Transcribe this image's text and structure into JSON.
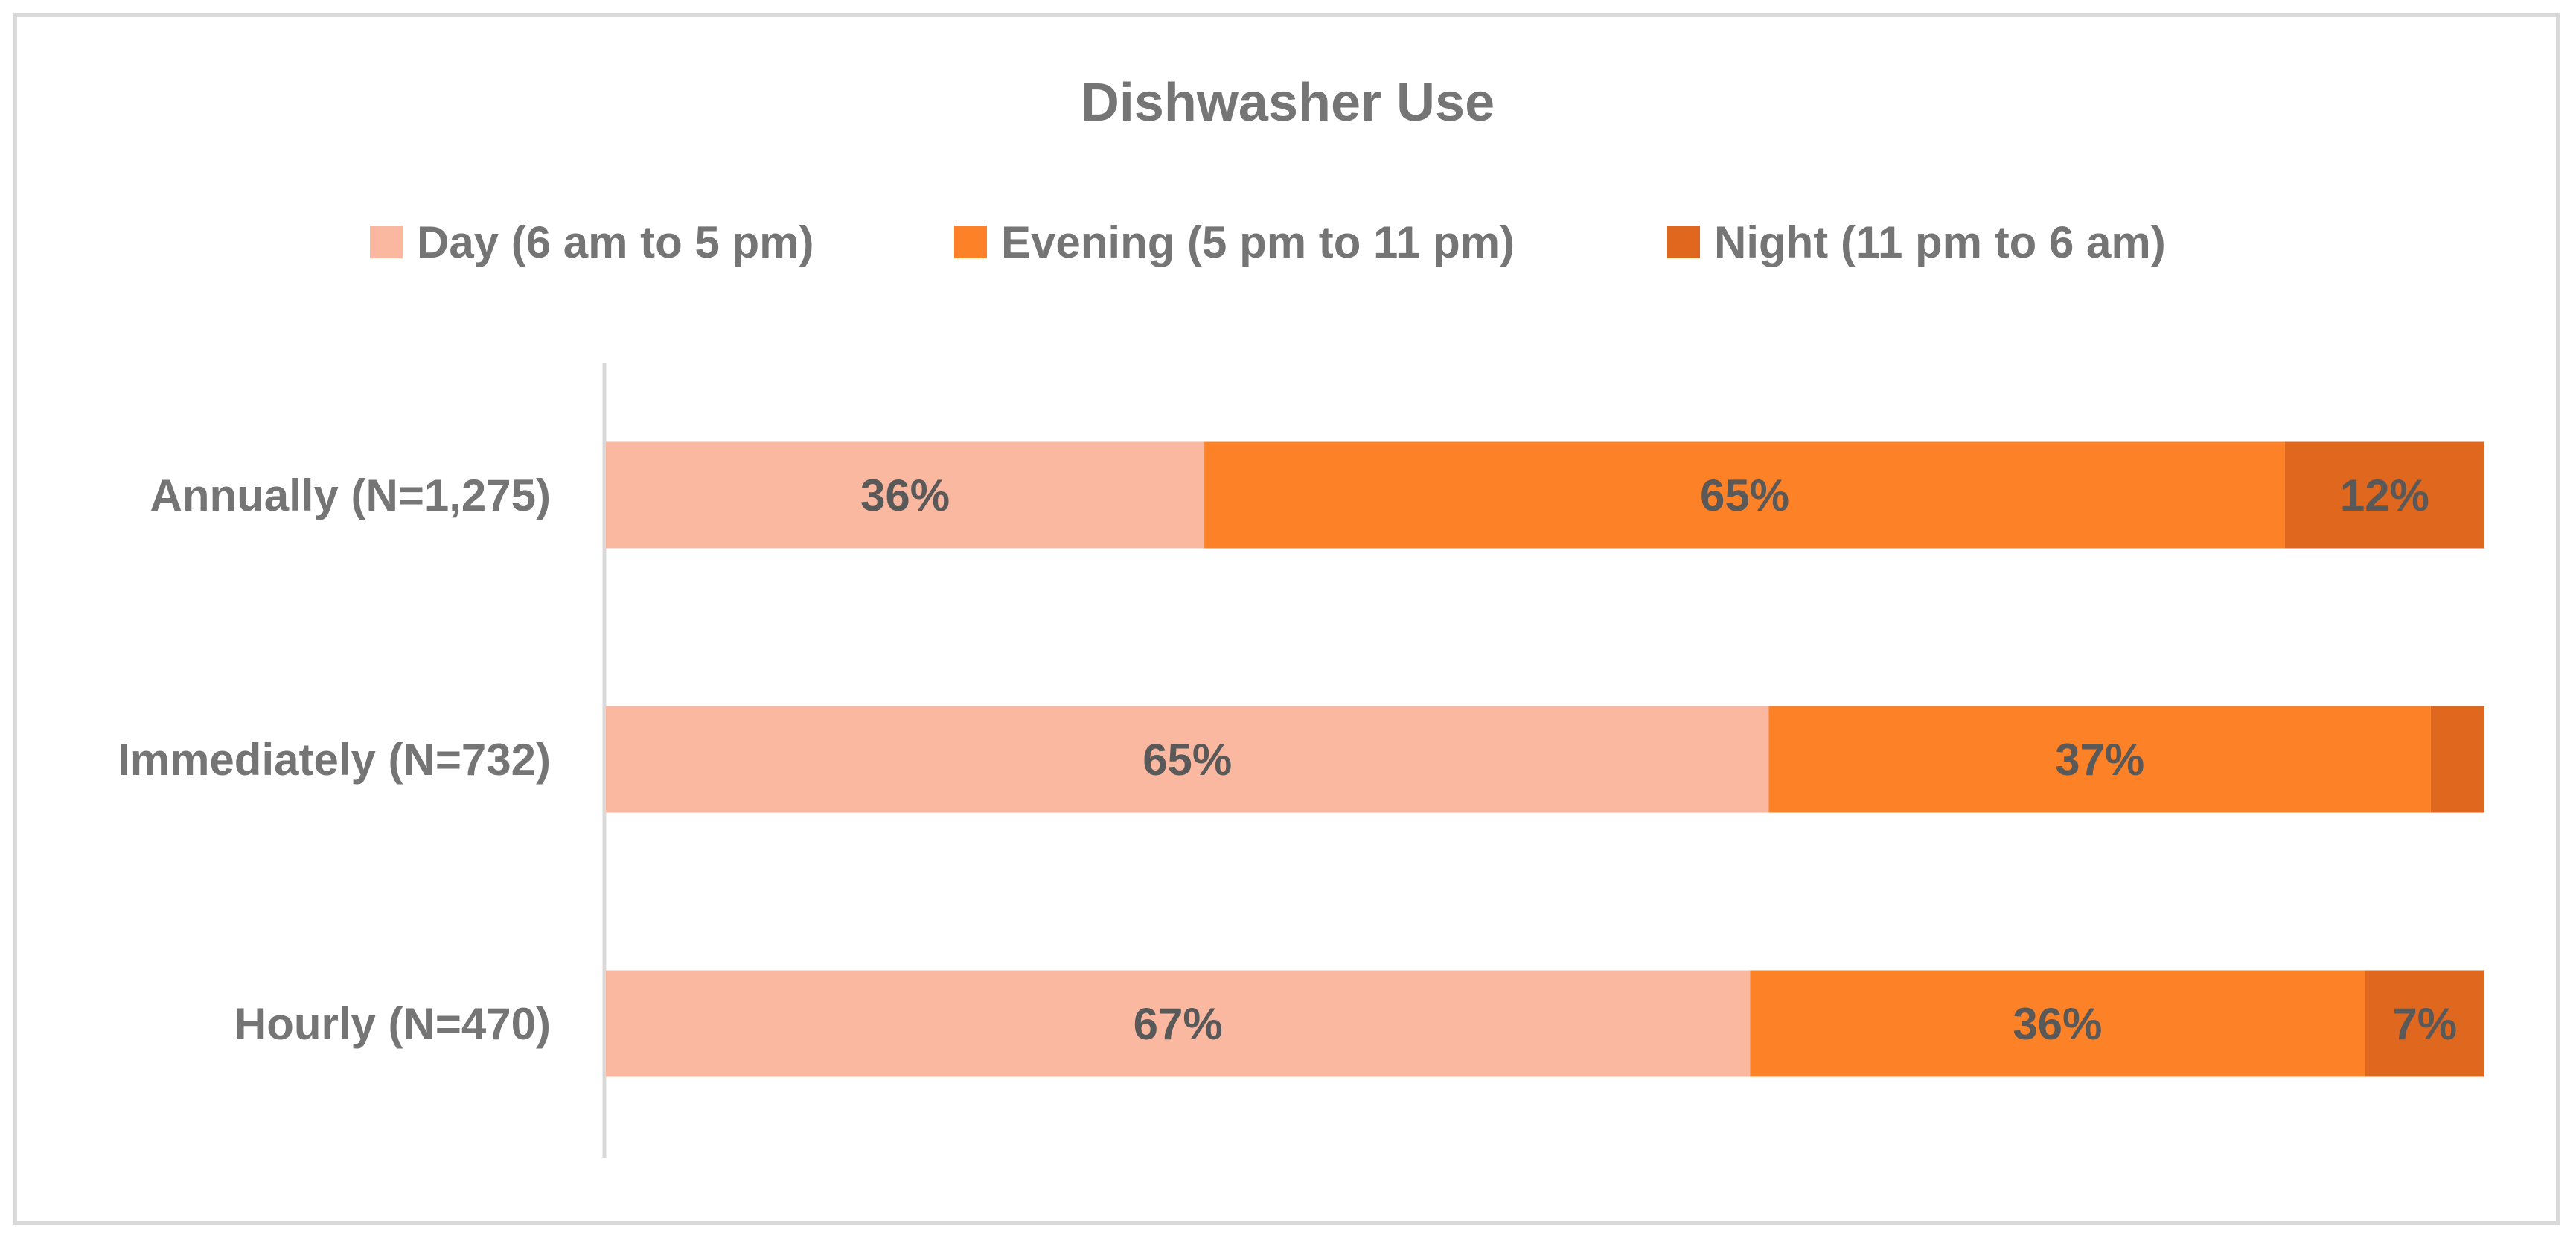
{
  "chart_data": {
    "type": "bar",
    "orientation": "horizontal",
    "stacked": true,
    "title": "Dishwasher Use",
    "categories": [
      "Annually (N=1,275)",
      "Immediately (N=732)",
      "Hourly (N=470)"
    ],
    "series": [
      {
        "name": "Day (6 am to 5 pm)",
        "color": "#fbb8a0",
        "values": [
          36,
          65,
          67
        ],
        "labels": [
          "36%",
          "65%",
          "67%"
        ]
      },
      {
        "name": "Evening (5 pm to 11 pm)",
        "color": "#fd8126",
        "values": [
          65,
          37,
          36
        ],
        "labels": [
          "65%",
          "37%",
          "36%"
        ]
      },
      {
        "name": "Night (11 pm to 6 am)",
        "color": "#df671e",
        "values": [
          12,
          3,
          7
        ],
        "labels": [
          "12%",
          "",
          "7%"
        ]
      }
    ],
    "legend_position": "top",
    "grid": false
  }
}
